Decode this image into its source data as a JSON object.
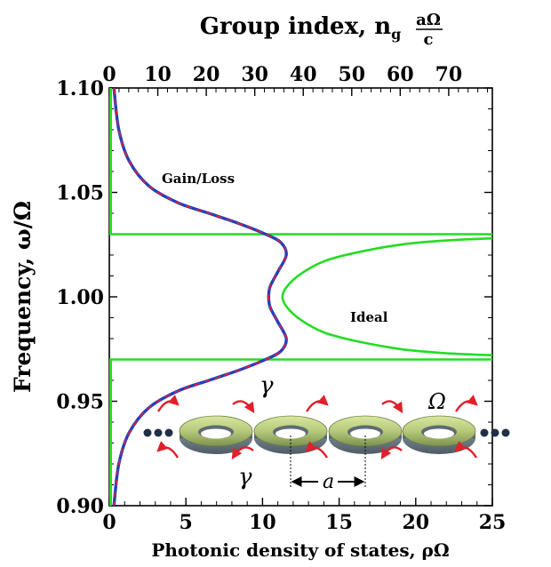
{
  "chart_data": {
    "type": "line",
    "xlabel": "Photonic density of states, ρΩ",
    "x2label": "Group index, n",
    "x2label_sub": "g",
    "x2label_frac_num": "aΩ",
    "x2label_frac_den": "c",
    "ylabel": "Frequency, ω/Ω",
    "xlim": [
      0,
      25
    ],
    "ylim": [
      0.9,
      1.1
    ],
    "x2lim": [
      0,
      79
    ],
    "x_ticks": [
      "0",
      "5",
      "10",
      "15",
      "20",
      "25"
    ],
    "x2_ticks": [
      "0",
      "10",
      "20",
      "30",
      "40",
      "50",
      "60",
      "70"
    ],
    "y_ticks": [
      "0.90",
      "0.95",
      "1.00",
      "1.05",
      "1.10"
    ],
    "series": [
      {
        "name": "Gain/Loss",
        "color": "#1f3fbf",
        "dash_color": "#e0203a",
        "points": [
          [
            0.3,
            1.1
          ],
          [
            0.62,
            1.08
          ],
          [
            1.3,
            1.065
          ],
          [
            2.6,
            1.053
          ],
          [
            4.5,
            1.045
          ],
          [
            6.5,
            1.04
          ],
          [
            8.5,
            1.035
          ],
          [
            10.2,
            1.03
          ],
          [
            11.2,
            1.026
          ],
          [
            11.55,
            1.02
          ],
          [
            11.0,
            1.012
          ],
          [
            10.5,
            1.005
          ],
          [
            10.4,
            1.0
          ],
          [
            10.5,
            0.995
          ],
          [
            11.0,
            0.988
          ],
          [
            11.55,
            0.98
          ],
          [
            11.2,
            0.974
          ],
          [
            10.2,
            0.97
          ],
          [
            8.5,
            0.965
          ],
          [
            6.5,
            0.96
          ],
          [
            4.5,
            0.955
          ],
          [
            2.6,
            0.947
          ],
          [
            1.3,
            0.935
          ],
          [
            0.62,
            0.92
          ],
          [
            0.3,
            0.9
          ]
        ]
      },
      {
        "name": "Ideal",
        "color": "#22dd22",
        "points": [
          [
            25.0,
            1.028
          ],
          [
            22.0,
            1.027
          ],
          [
            19.0,
            1.025
          ],
          [
            16.0,
            1.021
          ],
          [
            14.0,
            1.017
          ],
          [
            12.5,
            1.011
          ],
          [
            11.6,
            1.005
          ],
          [
            11.3,
            1.0
          ],
          [
            11.6,
            0.995
          ],
          [
            12.5,
            0.989
          ],
          [
            14.0,
            0.983
          ],
          [
            16.0,
            0.979
          ],
          [
            19.0,
            0.975
          ],
          [
            22.0,
            0.973
          ],
          [
            25.0,
            0.972
          ]
        ]
      }
    ],
    "band_edges": [
      1.03,
      0.97
    ],
    "annotations": [
      "Gain/Loss",
      "Ideal"
    ],
    "inset": {
      "labels": [
        "γ",
        "γ",
        "Ω",
        "a"
      ],
      "ring_count": 4
    }
  }
}
